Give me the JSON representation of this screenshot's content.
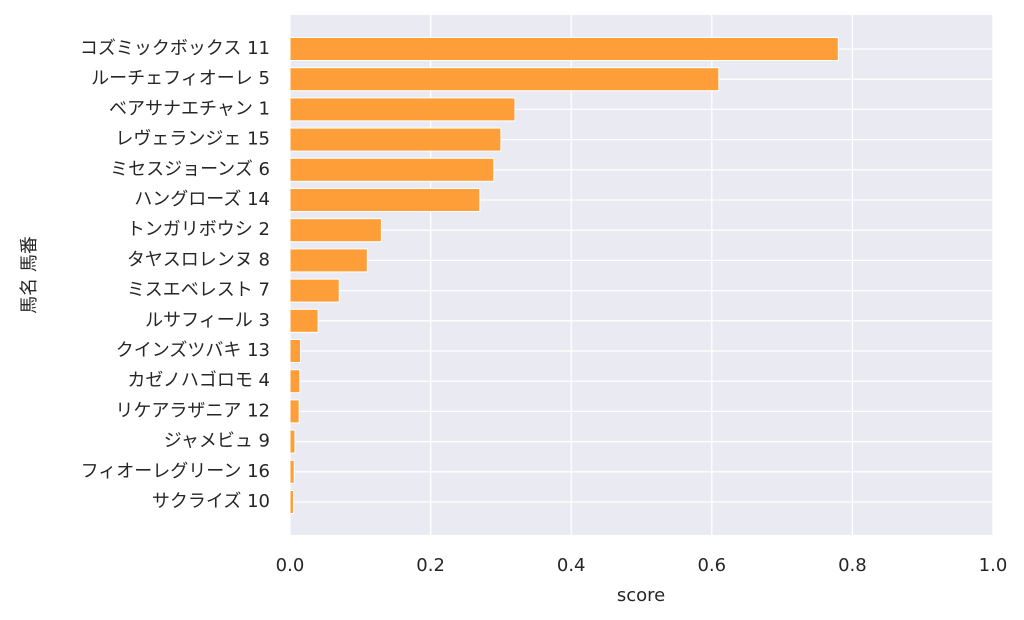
{
  "chart_data": {
    "type": "barh",
    "x_label": "score",
    "y_label": "馬名 馬番",
    "categories": [
      "コズミックボックス 11",
      "ルーチェフィオーレ 5",
      "ベアサナエチャン 1",
      "レヴェランジェ 15",
      "ミセスジョーンズ 6",
      "ハングローズ 14",
      "トンガリボウシ 2",
      "タヤスロレンヌ 8",
      "ミスエベレスト 7",
      "ルサフィール 3",
      "クインズツバキ 13",
      "カゼノハゴロモ 4",
      "リケアラザニア 12",
      "ジャメビュ 9",
      "フィオーレグリーン 16",
      "サクライズ 10"
    ],
    "values": [
      0.78,
      0.61,
      0.32,
      0.3,
      0.29,
      0.27,
      0.13,
      0.11,
      0.07,
      0.04,
      0.015,
      0.014,
      0.013,
      0.007,
      0.006,
      0.005
    ],
    "color": "#ff9a2e",
    "xlim": [
      0,
      1
    ],
    "xticks": [
      {
        "value": 0,
        "label": "0.0"
      },
      0.2,
      0.4,
      0.6,
      0.8,
      {
        "value": 1,
        "label": "1.0"
      }
    ],
    "grid": true
  }
}
